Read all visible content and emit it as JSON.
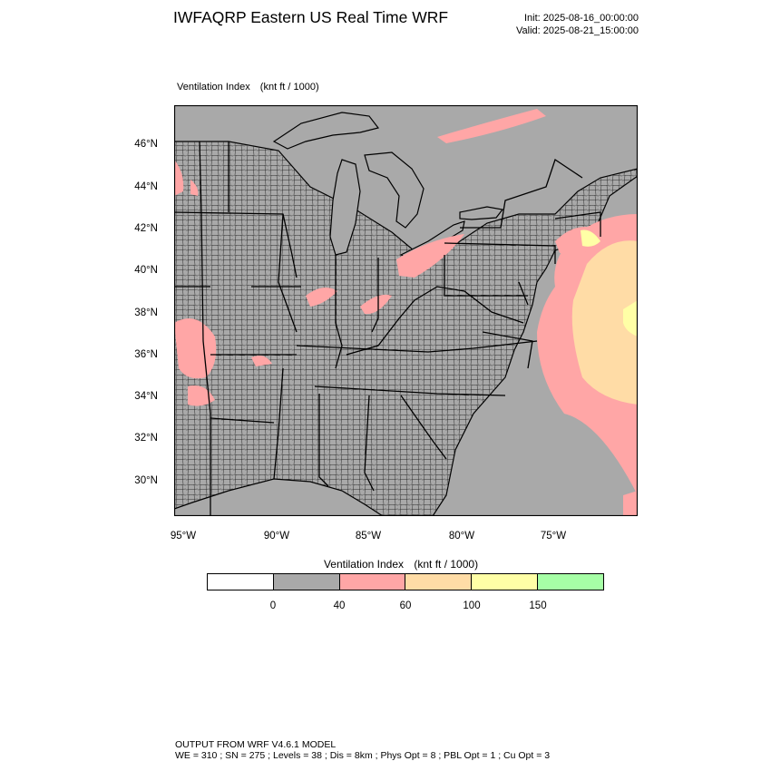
{
  "header": {
    "title": "IWFAQRP Eastern US Real Time WRF",
    "init": "Init: 2025-08-16_00:00:00",
    "valid": "Valid: 2025-08-21_15:00:00"
  },
  "map": {
    "field_name": "Ventilation Index",
    "field_units": "(knt ft / 1000)",
    "lat_labels": [
      "46°N",
      "44°N",
      "42°N",
      "40°N",
      "38°N",
      "36°N",
      "34°N",
      "32°N",
      "30°N"
    ],
    "lon_labels": [
      "95°W",
      "90°W",
      "85°W",
      "80°W",
      "75°W"
    ],
    "colors": {
      "land": "#a9a9a9",
      "ocean": "#a9a9a9",
      "lakes": "#a9a9a9",
      "boundaries": "#000000",
      "counties": "#1e1e1e"
    }
  },
  "legend": {
    "title": "Ventilation Index",
    "units": "(knt ft / 1000)",
    "colors": [
      "#ffffff",
      "#a9a9a9",
      "#ffa6a6",
      "#ffdca6",
      "#ffffa6",
      "#a6ffa6"
    ],
    "tick_labels": [
      "0",
      "40",
      "60",
      "100",
      "150"
    ]
  },
  "footer": {
    "line1": "OUTPUT FROM WRF V4.6.1 MODEL",
    "line2": "WE = 310 ; SN = 275 ; Levels = 38 ; Dis = 8km ; Phys Opt = 8 ; PBL Opt = 1 ; Cu Opt = 3"
  }
}
